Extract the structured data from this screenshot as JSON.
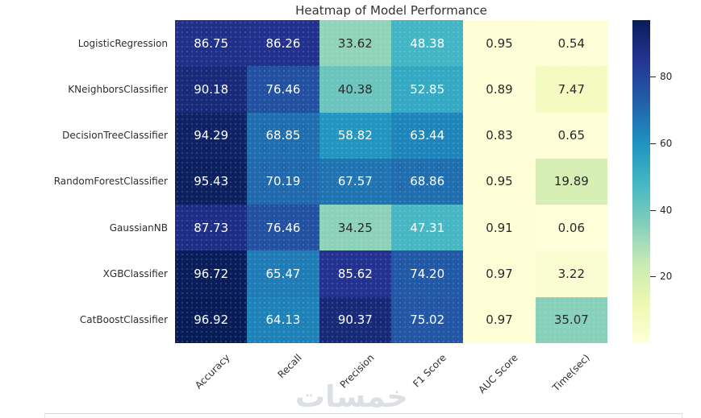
{
  "chart_data": {
    "type": "heatmap",
    "title": "Heatmap of Model Performance",
    "rows": [
      "LogisticRegression",
      "KNeighborsClassifier",
      "DecisionTreeClassifier",
      "RandomForestClassifier",
      "GaussianNB",
      "XGBClassifier",
      "CatBoostClassifier"
    ],
    "columns": [
      "Accuracy",
      "Recall",
      "Precision",
      "F1 Score",
      "AUC Score",
      "Time(sec)"
    ],
    "values": [
      [
        86.75,
        86.26,
        33.62,
        48.38,
        0.95,
        0.54
      ],
      [
        90.18,
        76.46,
        40.38,
        52.85,
        0.89,
        7.47
      ],
      [
        94.29,
        68.85,
        58.82,
        63.44,
        0.83,
        0.65
      ],
      [
        95.43,
        70.19,
        67.57,
        68.86,
        0.95,
        19.89
      ],
      [
        87.73,
        76.46,
        34.25,
        47.31,
        0.91,
        0.06
      ],
      [
        96.72,
        65.47,
        85.62,
        74.2,
        0.97,
        3.22
      ],
      [
        96.92,
        64.13,
        90.37,
        75.02,
        0.97,
        35.07
      ]
    ],
    "annotation_decimals": 2,
    "vmin": 0.06,
    "vmax": 96.92,
    "colorbar_ticks": [
      20,
      40,
      60,
      80
    ],
    "colormap": "YlGnBu",
    "colormap_stops": [
      "#ffffd9",
      "#edf8b1",
      "#c7e9b4",
      "#7fcdbb",
      "#41b6c4",
      "#1d91c0",
      "#225ea8",
      "#253494",
      "#081d58"
    ],
    "legend_position": "right-colorbar",
    "grid": "off",
    "x_tick_rotation": 45
  },
  "colors": {
    "annot_dark": "#262626",
    "annot_light": "#ffffff",
    "axis_text": "#2e2e2e",
    "title_text": "#333333",
    "tick": "#262626",
    "divider": "#d9d9d9",
    "watermark": "#dcdfe3",
    "background": "#ffffff"
  },
  "watermark": {
    "text": "خمسات"
  }
}
